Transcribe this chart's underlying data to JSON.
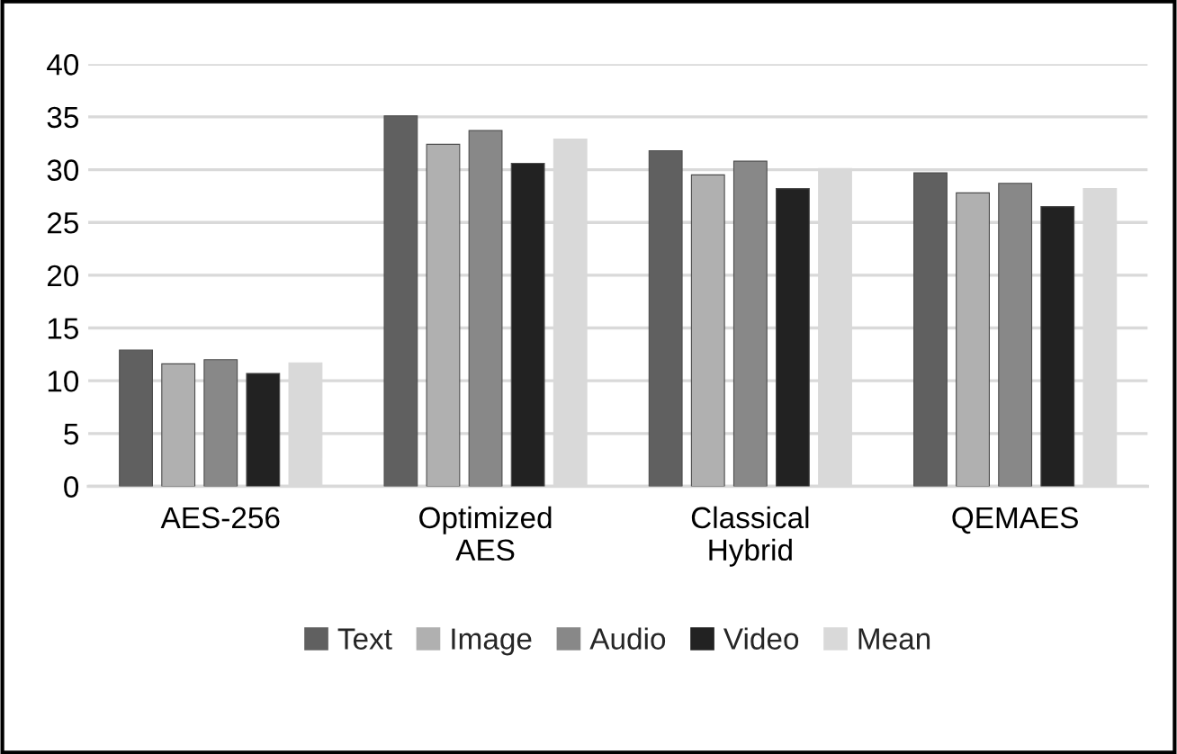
{
  "chart_data": {
    "type": "bar",
    "categories": [
      "AES-256",
      "Optimized AES",
      "Classical Hybrid",
      "QEMAES"
    ],
    "series": [
      {
        "name": "Text",
        "color": "#606060",
        "values": [
          12.9,
          35.1,
          31.8,
          29.7
        ]
      },
      {
        "name": "Image",
        "color": "#b0b0b0",
        "values": [
          11.6,
          32.4,
          29.5,
          27.8
        ]
      },
      {
        "name": "Audio",
        "color": "#888888",
        "values": [
          12.0,
          33.7,
          30.8,
          28.7
        ]
      },
      {
        "name": "Video",
        "color": "#222222",
        "values": [
          10.7,
          30.6,
          28.2,
          26.5
        ]
      },
      {
        "name": "Mean",
        "color": "#d9d9d9",
        "values": [
          11.7,
          32.9,
          30.1,
          28.2
        ]
      }
    ],
    "ylim": [
      0,
      40
    ],
    "yticks": [
      0,
      5,
      10,
      15,
      20,
      25,
      30,
      35,
      40
    ],
    "grid": "y",
    "legend": "bottom"
  }
}
